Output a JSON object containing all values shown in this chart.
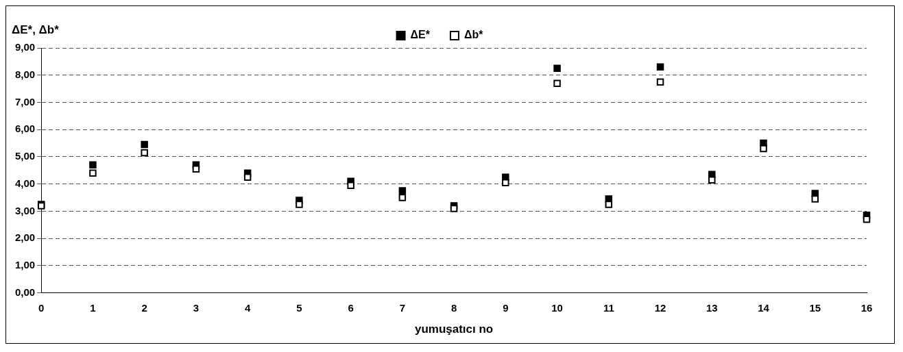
{
  "chart_data": {
    "type": "scatter",
    "xlabel": "yumuşatıcı no",
    "ylabel": "ΔE*, Δb*",
    "marker": "square",
    "grid": "y",
    "legend": "top",
    "x": [
      0,
      1,
      2,
      3,
      4,
      5,
      6,
      7,
      8,
      9,
      10,
      11,
      12,
      13,
      14,
      15,
      16
    ],
    "xlim": [
      0,
      16
    ],
    "xticks": [
      0,
      1,
      2,
      3,
      4,
      5,
      6,
      7,
      8,
      9,
      10,
      11,
      12,
      13,
      14,
      15,
      16
    ],
    "ylim": [
      0,
      9
    ],
    "yticks": [
      {
        "value": 0,
        "label": "0,00"
      },
      {
        "value": 1,
        "label": "1,00"
      },
      {
        "value": 2,
        "label": "2,00"
      },
      {
        "value": 3,
        "label": "3,00"
      },
      {
        "value": 4,
        "label": "4,00"
      },
      {
        "value": 5,
        "label": "5,00"
      },
      {
        "value": 6,
        "label": "6,00"
      },
      {
        "value": 7,
        "label": "7,00"
      },
      {
        "value": 8,
        "label": "8,00"
      },
      {
        "value": 9,
        "label": "9,00"
      }
    ],
    "series": [
      {
        "name": "ΔE*",
        "color": "#000000",
        "values": [
          3.25,
          4.7,
          5.45,
          4.7,
          4.4,
          3.4,
          4.1,
          3.75,
          3.2,
          4.25,
          8.25,
          3.45,
          8.3,
          4.35,
          5.5,
          3.65,
          2.85
        ]
      },
      {
        "name": "Δb*",
        "color": "#000000",
        "values": [
          3.2,
          4.4,
          5.15,
          4.55,
          4.25,
          3.25,
          3.95,
          3.5,
          3.1,
          4.05,
          7.7,
          3.25,
          7.75,
          4.15,
          5.3,
          3.45,
          2.7
        ]
      }
    ]
  }
}
